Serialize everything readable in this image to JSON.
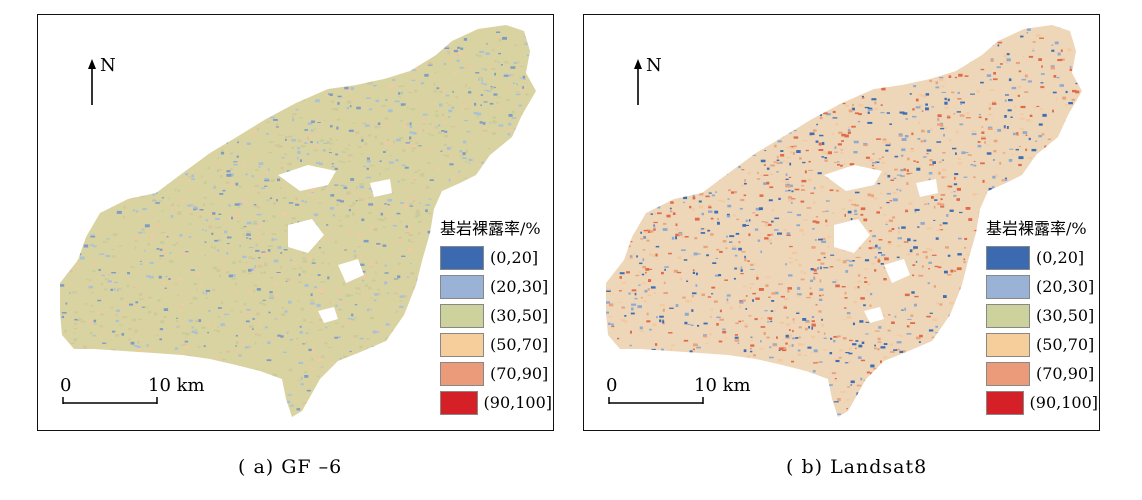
{
  "panels": [
    {
      "id": "a",
      "caption": "( a) GF –6",
      "north": "N",
      "scale": {
        "start": "0",
        "end": "10 km"
      },
      "legend_title": "基岩裸露率/%",
      "base_color": "#d8d3a0",
      "dots": [
        "#c9cc98",
        "#a9c0d6",
        "#f2c9a2",
        "#d4c79e",
        "#7f9cc4"
      ]
    },
    {
      "id": "b",
      "caption": "( b) Landsat8",
      "north": "N",
      "scale": {
        "start": "0",
        "end": "10 km"
      },
      "legend_title": "基岩裸露率/%",
      "base_color": "#eed6b8",
      "dots": [
        "#3e6db4",
        "#e9a47e",
        "#f4c9a0",
        "#8fa9cf",
        "#e06b4c"
      ]
    }
  ],
  "legend": [
    {
      "label": "(0,20]",
      "color": "#3b6ab0"
    },
    {
      "label": "(20,30]",
      "color": "#99b2d6"
    },
    {
      "label": "(30,50]",
      "color": "#cdd29c"
    },
    {
      "label": "(50,70]",
      "color": "#f6ce9c"
    },
    {
      "label": "(70,90]",
      "color": "#ec9b7a"
    },
    {
      "label": "(90,100]",
      "color": "#d62028"
    }
  ]
}
